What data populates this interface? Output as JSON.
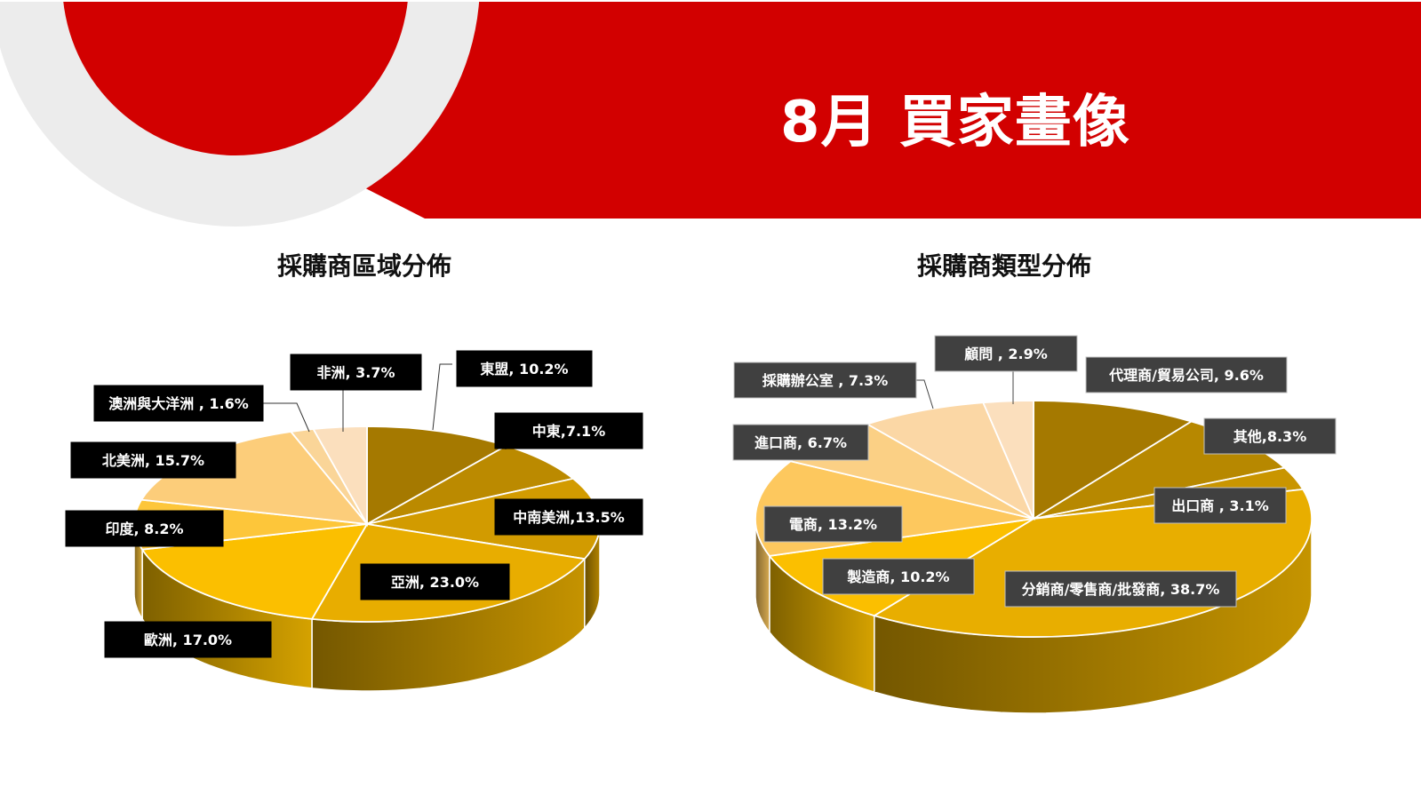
{
  "slide": {
    "title": "8月 買家畫像",
    "colors": {
      "banner": "#d20000",
      "ring": "#ececec",
      "pie_dark": "#a57900",
      "pie_light": "#fbdfbd"
    }
  },
  "chart_data": [
    {
      "type": "pie",
      "title": "採購商區域分佈",
      "label_style": "black-box",
      "slices": [
        {
          "label": "東盟, 10.2%",
          "value": 10.2,
          "color": "#a57900"
        },
        {
          "label": "中東,7.1%",
          "value": 7.1,
          "color": "#bb8a00"
        },
        {
          "label": "中南美洲,13.5%",
          "value": 13.5,
          "color": "#d29b00"
        },
        {
          "label": "亞洲, 23.0%",
          "value": 23.0,
          "color": "#e8ad00"
        },
        {
          "label": "歐洲, 17.0%",
          "value": 17.0,
          "color": "#fbbf00"
        },
        {
          "label": "印度, 8.2%",
          "value": 8.2,
          "color": "#fdc63a"
        },
        {
          "label": "北美洲, 15.7%",
          "value": 15.7,
          "color": "#fccd7a"
        },
        {
          "label": "澳洲與大洋洲 , 1.6%",
          "value": 1.6,
          "color": "#fad598"
        },
        {
          "label": "非洲, 3.7%",
          "value": 3.7,
          "color": "#fbdfbd"
        }
      ]
    },
    {
      "type": "pie",
      "title": "採購商類型分佈",
      "label_style": "gray-box",
      "slices": [
        {
          "label": "代理商/貿易公司, 9.6%",
          "value": 9.6,
          "color": "#a57900"
        },
        {
          "label": "其他,8.3%",
          "value": 8.3,
          "color": "#b78800"
        },
        {
          "label": "出口商 , 3.1%",
          "value": 3.1,
          "color": "#c99500"
        },
        {
          "label": "分銷商/零售商/批發商, 38.7%",
          "value": 38.7,
          "color": "#e8ae00"
        },
        {
          "label": "製造商, 10.2%",
          "value": 10.2,
          "color": "#fbbf00"
        },
        {
          "label": "電商, 13.2%",
          "value": 13.2,
          "color": "#fdc85e"
        },
        {
          "label": "進口商, 6.7%",
          "value": 6.7,
          "color": "#fbd085"
        },
        {
          "label": "採購辦公室 , 7.3%",
          "value": 7.3,
          "color": "#fbd7a5"
        },
        {
          "label": "顧問 , 2.9%",
          "value": 2.9,
          "color": "#fbdfbd"
        }
      ]
    }
  ]
}
